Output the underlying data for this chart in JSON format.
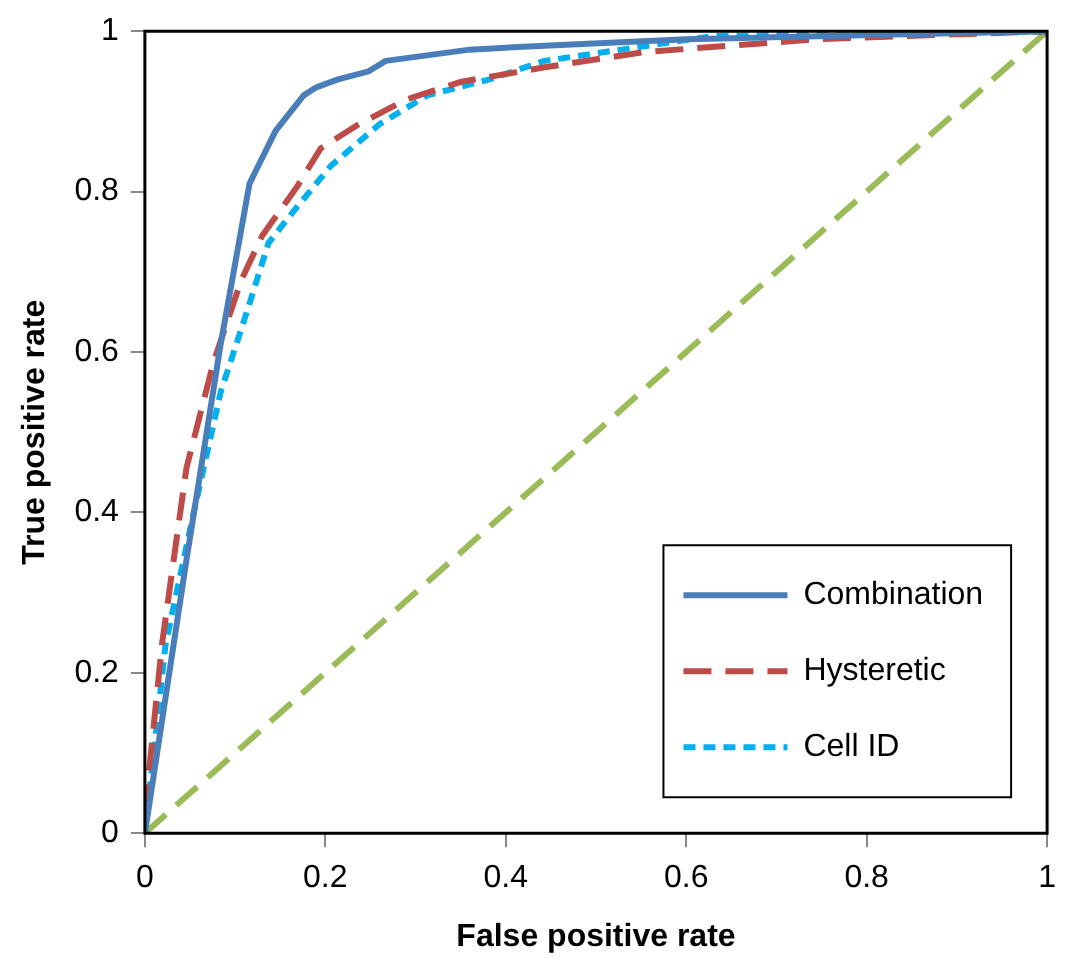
{
  "chart_data": {
    "type": "line",
    "xlabel": "False positive rate",
    "ylabel": "True positive rate",
    "xlim": [
      0,
      1
    ],
    "ylim": [
      0,
      1
    ],
    "xticks": [
      0,
      0.2,
      0.4,
      0.6,
      0.8,
      1
    ],
    "yticks": [
      0,
      0.2,
      0.4,
      0.6,
      0.8,
      1
    ],
    "grid": false,
    "legend": "bottom right",
    "marker": "none",
    "series": [
      {
        "name": "Combination",
        "color": "#4a7ebb",
        "line_style": "solid",
        "x": [
          0,
          0.046,
          0.084,
          0.116,
          0.145,
          0.176,
          0.19,
          0.214,
          0.248,
          0.267,
          0.36,
          0.443,
          0.6,
          1
        ],
        "values": [
          0,
          0.34,
          0.61,
          0.81,
          0.876,
          0.92,
          0.93,
          0.94,
          0.95,
          0.963,
          0.977,
          0.982,
          0.99,
          1
        ]
      },
      {
        "name": "Hysteretic",
        "color": "#be4b48",
        "line_style": "dashed",
        "x": [
          0,
          0.019,
          0.046,
          0.076,
          0.107,
          0.13,
          0.168,
          0.195,
          0.237,
          0.29,
          0.351,
          0.443,
          0.553,
          0.745,
          1
        ],
        "values": [
          0.026,
          0.236,
          0.455,
          0.587,
          0.69,
          0.745,
          0.805,
          0.854,
          0.884,
          0.915,
          0.937,
          0.955,
          0.974,
          0.99,
          1
        ]
      },
      {
        "name": "Cell ID",
        "color": "#00b0f0",
        "line_style": "dotted",
        "x": [
          0,
          0.023,
          0.053,
          0.084,
          0.115,
          0.137,
          0.168,
          0.206,
          0.26,
          0.313,
          0.382,
          0.443,
          0.63,
          1
        ],
        "values": [
          0,
          0.236,
          0.394,
          0.55,
          0.657,
          0.736,
          0.78,
          0.832,
          0.884,
          0.92,
          0.94,
          0.963,
          0.994,
          1
        ]
      },
      {
        "color": "#9bbb59",
        "line_style": "dashed",
        "x": [
          0,
          1
        ],
        "values": [
          0,
          1
        ]
      }
    ]
  }
}
